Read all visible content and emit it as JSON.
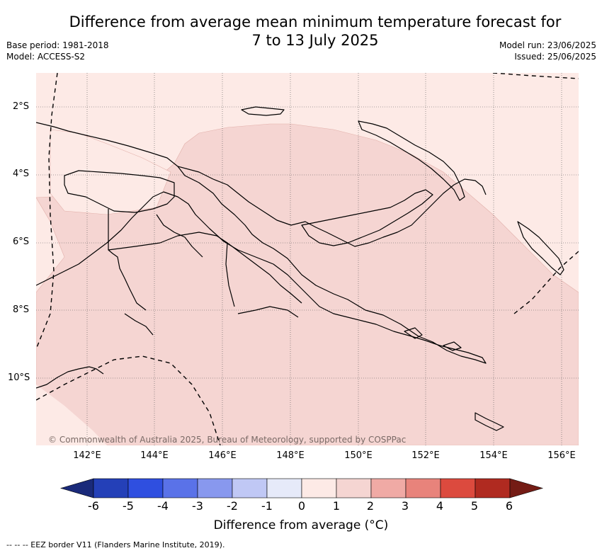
{
  "title_line1": "Difference from average mean minimum temperature forecast for",
  "title_line2": "7 to 13 July 2025",
  "base_period": "Base period: 1981-2018",
  "model": "Model: ACCESS-S2",
  "model_run": "Model run: 23/06/2025",
  "issued": "Issued: 25/06/2025",
  "copyright": "© Commonwealth of Australia 2025, Bureau of Meteorology, supported by COSPPac",
  "lat_labels": [
    "2°S",
    "4°S",
    "6°S",
    "8°S",
    "10°S"
  ],
  "lon_labels": [
    "142°E",
    "144°E",
    "146°E",
    "148°E",
    "150°E",
    "152°E",
    "154°E",
    "156°E"
  ],
  "colorbar": {
    "ticks": [
      "-6",
      "-5",
      "-4",
      "-3",
      "-2",
      "-1",
      "0",
      "1",
      "2",
      "3",
      "4",
      "5",
      "6"
    ],
    "colors": {
      "below_min": "#1a2a7a",
      "-6_-5": "#2440b8",
      "-5_-4": "#2f4fe0",
      "-4_-3": "#5a72e8",
      "-3_-2": "#8898ee",
      "-2_-1": "#c0c8f5",
      "-1_0": "#e6eaf9",
      "0_1": "#fdeae6",
      "1_2": "#f5d5d2",
      "2_3": "#f0aaa5",
      "3_4": "#e8837b",
      "4_5": "#dc4a3e",
      "5_6": "#b02a20",
      "above_max": "#741c15"
    },
    "label": "Difference from average (°C)"
  },
  "legend_line": "-- -- -- EEZ border V11 (Flanders Marine Institute, 2019)."
}
